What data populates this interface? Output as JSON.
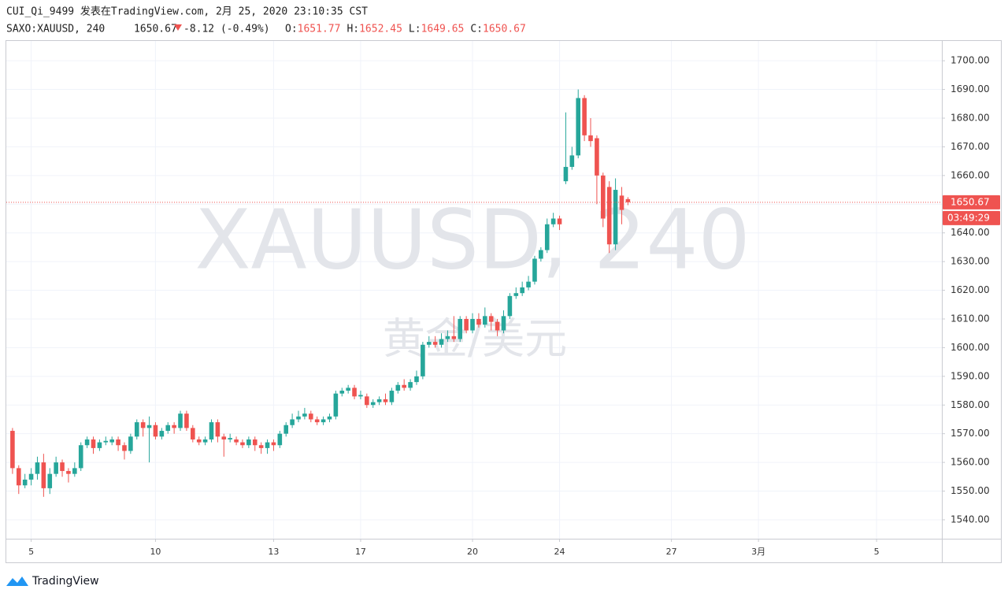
{
  "header": {
    "line1": "CUI_Qi_9499 发表在TradingView.com, 2月 25, 2020 23:10:35 CST",
    "symbol": "SAXO:XAUUSD, 240",
    "last": "1650.67",
    "change": "-8.12 (-0.49%)",
    "ohlc": [
      {
        "label": "O:",
        "value": "1651.77"
      },
      {
        "label": "H:",
        "value": "1652.45"
      },
      {
        "label": "L:",
        "value": "1649.65"
      },
      {
        "label": "C:",
        "value": "1650.67"
      }
    ]
  },
  "chart_data": {
    "type": "candlestick",
    "watermark": "XAUUSD, 240",
    "watermark_sub": "黄金/美元",
    "up_color": "#26a69a",
    "down_color": "#ef5350",
    "grid": true,
    "price_line": 1650.67,
    "price_label": "1650.67",
    "countdown": "03:49:29",
    "xlim": [
      -1,
      149.5
    ],
    "xticks": [
      {
        "value": 3,
        "label": "5"
      },
      {
        "value": 23,
        "label": "10"
      },
      {
        "value": 42,
        "label": "13"
      },
      {
        "value": 56,
        "label": "17"
      },
      {
        "value": 74,
        "label": "20"
      },
      {
        "value": 88,
        "label": "24"
      },
      {
        "value": 106,
        "label": "27"
      },
      {
        "value": 120,
        "label": "3月"
      },
      {
        "value": 139,
        "label": "5"
      }
    ],
    "ylim": [
      1533.4,
      1706.9
    ],
    "yticks": [
      {
        "value": 1540,
        "label": "1540.00"
      },
      {
        "value": 1550,
        "label": "1550.00"
      },
      {
        "value": 1560,
        "label": "1560.00"
      },
      {
        "value": 1570,
        "label": "1570.00"
      },
      {
        "value": 1580,
        "label": "1580.00"
      },
      {
        "value": 1590,
        "label": "1590.00"
      },
      {
        "value": 1600,
        "label": "1600.00"
      },
      {
        "value": 1610,
        "label": "1610.00"
      },
      {
        "value": 1620,
        "label": "1620.00"
      },
      {
        "value": 1630,
        "label": "1630.00"
      },
      {
        "value": 1640,
        "label": "1640.00"
      },
      {
        "value": 1650,
        "label": "1650.00"
      },
      {
        "value": 1660,
        "label": "1660.00"
      },
      {
        "value": 1670,
        "label": "1670.00"
      },
      {
        "value": 1680,
        "label": "1680.00"
      },
      {
        "value": 1690,
        "label": "1690.00"
      },
      {
        "value": 1700,
        "label": "1700.00"
      }
    ],
    "open": [
      1571,
      1558,
      1552,
      1554,
      1556,
      1560,
      1551,
      1556,
      1560,
      1557,
      1556,
      1558,
      1566,
      1568,
      1565,
      1567,
      1567,
      1568,
      1566,
      1564,
      1569,
      1574,
      1572,
      1573,
      1569,
      1571,
      1573,
      1572,
      1577,
      1572,
      1568,
      1567,
      1568,
      1574,
      1569,
      1568,
      1568,
      1567,
      1566,
      1568,
      1566,
      1565,
      1567,
      1566,
      1570,
      1573,
      1575,
      1576,
      1577,
      1575,
      1574,
      1575,
      1576,
      1584,
      1585,
      1586,
      1583,
      1583,
      1580,
      1581,
      1582,
      1581,
      1585,
      1587,
      1586,
      1588,
      1590,
      1601,
      1602,
      1601,
      1603,
      1604,
      1603,
      1610,
      1606,
      1610,
      1608,
      1611,
      1609,
      1606,
      1611,
      1618,
      1619,
      1621,
      1623,
      1631,
      1634,
      1643,
      1645,
      1658,
      1663,
      1667,
      1687,
      1674,
      1673,
      1660,
      1656,
      1636,
      1653,
      1651.77
    ],
    "high": [
      1572,
      1559,
      1556,
      1558,
      1562,
      1563,
      1558,
      1562,
      1561,
      1558,
      1560,
      1567,
      1569,
      1569,
      1568,
      1569,
      1569,
      1569,
      1567,
      1570,
      1575,
      1575,
      1576,
      1574,
      1572,
      1574,
      1574,
      1578,
      1578,
      1573,
      1569,
      1569,
      1575,
      1575,
      1570,
      1570,
      1569,
      1568,
      1569,
      1569,
      1567,
      1568,
      1568,
      1571,
      1574,
      1577,
      1578,
      1579,
      1578,
      1576,
      1576,
      1577,
      1585,
      1586,
      1587,
      1587,
      1585,
      1584,
      1582,
      1583,
      1584,
      1586,
      1588,
      1589,
      1589,
      1592,
      1602,
      1604,
      1604,
      1605,
      1606,
      1611,
      1611,
      1611,
      1612,
      1612,
      1614,
      1612,
      1610,
      1613,
      1619,
      1621,
      1623,
      1625,
      1632,
      1635,
      1645,
      1647,
      1646,
      1682,
      1670,
      1690,
      1688,
      1680,
      1674,
      1661,
      1658,
      1659,
      1656,
      1652.45
    ],
    "low": [
      1556,
      1549,
      1551,
      1552,
      1554,
      1548,
      1549,
      1555,
      1555,
      1553,
      1555,
      1557,
      1565,
      1563,
      1564,
      1566,
      1566,
      1564,
      1561,
      1563,
      1568,
      1569,
      1560,
      1568,
      1568,
      1570,
      1570,
      1571,
      1571,
      1567,
      1566,
      1566,
      1567,
      1567,
      1562,
      1567,
      1566,
      1565,
      1565,
      1564,
      1563,
      1563,
      1564,
      1565,
      1569,
      1572,
      1574,
      1575,
      1574,
      1573,
      1573,
      1574,
      1575,
      1583,
      1584,
      1582,
      1582,
      1579,
      1579,
      1580,
      1580,
      1580,
      1584,
      1585,
      1585,
      1587,
      1589,
      1600,
      1600,
      1600,
      1602,
      1602,
      1602,
      1605,
      1605,
      1607,
      1607,
      1606,
      1604,
      1605,
      1610,
      1617,
      1618,
      1620,
      1622,
      1630,
      1633,
      1642,
      1641,
      1657,
      1662,
      1666,
      1672,
      1670,
      1650,
      1642,
      1633,
      1634,
      1643,
      1649.65
    ],
    "close": [
      1558,
      1552,
      1554,
      1556,
      1560,
      1551,
      1556,
      1560,
      1557,
      1556,
      1558,
      1566,
      1568,
      1565,
      1567,
      1567.5,
      1568,
      1566,
      1564,
      1569,
      1574,
      1572,
      1573,
      1569,
      1571,
      1573,
      1572,
      1577,
      1572,
      1568,
      1567,
      1568,
      1574,
      1569,
      1568,
      1568.5,
      1567,
      1566,
      1568,
      1566,
      1565,
      1567,
      1566,
      1570,
      1573,
      1575,
      1576,
      1577,
      1575,
      1574,
      1575,
      1576,
      1584,
      1585,
      1586,
      1583,
      1583.5,
      1580,
      1581,
      1582,
      1581,
      1585,
      1587,
      1586,
      1588,
      1590,
      1601,
      1602,
      1601,
      1603,
      1604,
      1603,
      1610,
      1606,
      1610,
      1608,
      1611,
      1609,
      1606,
      1611,
      1618,
      1619,
      1621,
      1623,
      1631,
      1634,
      1643,
      1645,
      1643,
      1663,
      1667,
      1687,
      1674,
      1672,
      1660,
      1645,
      1636,
      1655,
      1648,
      1650.67
    ]
  },
  "footer": {
    "brand": "TradingView"
  }
}
